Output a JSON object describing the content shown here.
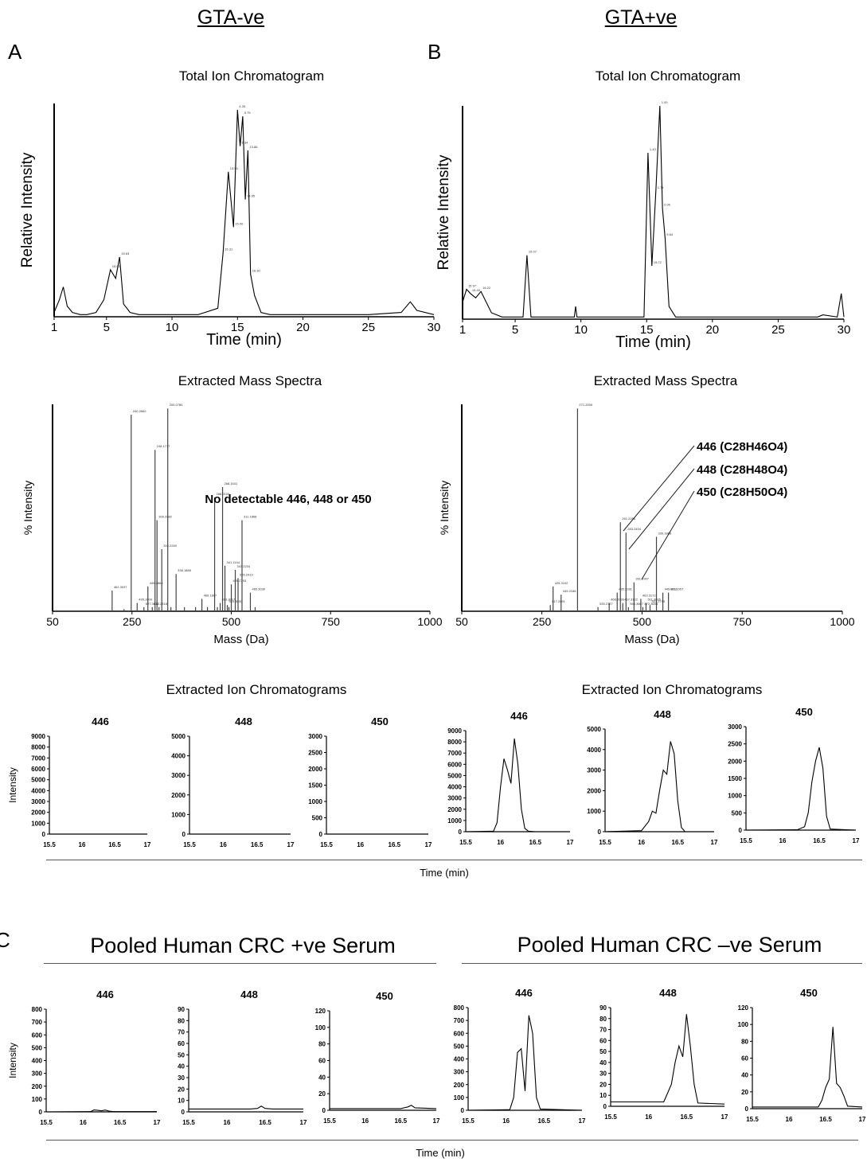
{
  "headers": {
    "left": "GTA-ve",
    "right": "GTA+ve"
  },
  "panel_letters": {
    "a": "A",
    "b": "B",
    "c": "C"
  },
  "panel_titles": {
    "tic": "Total Ion Chromatogram",
    "ms": "Extracted Mass Spectra",
    "eic": "Extracted Ion Chromatograms"
  },
  "section_c": {
    "left": "Pooled Human CRC +ve Serum",
    "right": "Pooled Human CRC –ve Serum"
  },
  "time_label": "Time (min)",
  "chart_data": [
    {
      "id": "tic_neg",
      "type": "line",
      "title": "Total Ion Chromatogram",
      "xlabel": "Time (min)",
      "ylabel": "Relative Intensity",
      "xlim": [
        1,
        30
      ],
      "ylim": [
        0,
        100
      ],
      "xticks": [
        1,
        5,
        10,
        15,
        20,
        25,
        30
      ],
      "x": [
        1,
        1.4,
        1.7,
        2.0,
        2.4,
        3.0,
        3.5,
        4.2,
        4.8,
        5.3,
        5.7,
        6.0,
        6.3,
        6.8,
        7.5,
        9,
        12,
        13.5,
        13.9,
        14.3,
        14.7,
        15.0,
        15.2,
        15.4,
        15.6,
        15.8,
        16.0,
        16.3,
        16.8,
        17.5,
        19,
        22,
        25,
        27.5,
        28.2,
        28.7,
        30
      ],
      "y": [
        2,
        8,
        14,
        5,
        2,
        1,
        1,
        2,
        8,
        22,
        18,
        28,
        6,
        2,
        1,
        1,
        1,
        4,
        30,
        68,
        42,
        97,
        80,
        94,
        55,
        78,
        20,
        10,
        2,
        1,
        1,
        1,
        1,
        2,
        7,
        3,
        1
      ],
      "peak_labels": [
        "4.26",
        "5.75",
        "6.34",
        "13.86",
        "13.90",
        "14.35",
        "15.00",
        "15.31",
        "15.63",
        "15.92",
        "16.30"
      ]
    },
    {
      "id": "tic_pos",
      "type": "line",
      "title": "Total Ion Chromatogram",
      "xlabel": "Time (min)",
      "ylabel": "Relative Intensity",
      "xlim": [
        1,
        30
      ],
      "ylim": [
        0,
        100
      ],
      "xticks": [
        1,
        5,
        10,
        15,
        20,
        25,
        30
      ],
      "x": [
        1,
        1.3,
        1.6,
        2.0,
        2.4,
        2.8,
        3.2,
        4,
        5.6,
        5.9,
        6.2,
        7,
        9.5,
        9.6,
        9.7,
        14.8,
        15.1,
        15.4,
        15.7,
        16.0,
        16.2,
        16.4,
        16.7,
        17.2,
        18,
        22,
        28,
        28.4,
        29.5,
        29.8,
        30
      ],
      "y": [
        8,
        14,
        12,
        10,
        13,
        8,
        3,
        1,
        1,
        30,
        1,
        1,
        1,
        6,
        1,
        1,
        78,
        25,
        60,
        100,
        52,
        38,
        6,
        1,
        1,
        1,
        1,
        2,
        1,
        12,
        1
      ],
      "peak_labels": [
        "1.00",
        "1.43",
        "1.74",
        "2.06",
        "5.64",
        "15.07",
        "15.72",
        "15.97",
        "16.22",
        "16.40"
      ]
    },
    {
      "id": "ms_neg",
      "type": "bar",
      "title": "Extracted Mass Spectra",
      "xlabel": "Mass (Da)",
      "ylabel": "% Intensity",
      "xlim": [
        50,
        1000
      ],
      "ylim": [
        0,
        100
      ],
      "xticks": [
        50,
        250,
        500,
        750,
        1000
      ],
      "annotation": "No detectable 446, 448 or 450",
      "x": [
        200,
        230,
        248,
        263,
        280,
        290,
        301,
        308,
        313,
        318,
        325,
        340,
        348,
        361,
        382,
        410,
        426,
        440,
        458,
        465,
        472,
        478,
        484,
        490,
        494,
        500,
        510,
        517,
        527,
        548,
        560
      ],
      "y": [
        10,
        1,
        95,
        4,
        2,
        12,
        2,
        78,
        44,
        2,
        30,
        98,
        2,
        18,
        2,
        2,
        6,
        2,
        55,
        2,
        4,
        60,
        22,
        3,
        2,
        13,
        20,
        16,
        44,
        9,
        2
      ],
      "peak_labels": [
        "200.0780",
        "240.2660",
        "248.1717",
        "268.1631",
        "288.2100",
        "309.2082",
        "311.1868",
        "310.2269",
        "341.1144",
        "343.2234",
        "338.1888",
        "365.2910",
        "426.2793",
        "449.2868",
        "462.3037",
        "465.3030",
        "469.1807",
        "495.1009",
        "499.3017",
        "510.3000",
        "527.3612",
        "532.2318"
      ]
    },
    {
      "id": "ms_pos",
      "type": "bar",
      "title": "Extracted Mass Spectra",
      "xlabel": "Mass (Da)",
      "ylabel": "% Intensity",
      "xlim": [
        50,
        1000
      ],
      "ylim": [
        0,
        100
      ],
      "xticks": [
        50,
        250,
        500,
        750,
        1000
      ],
      "annotations": [
        "446 (C28H46O4)",
        "448 (C28H48O4)",
        "450 (C28H50O4)"
      ],
      "x": [
        271,
        278,
        298,
        339,
        390,
        418,
        438,
        446,
        452,
        460,
        466,
        480,
        497,
        502,
        510,
        520,
        536,
        552,
        566
      ],
      "y": [
        3,
        12,
        8,
        98,
        2,
        4,
        9,
        43,
        4,
        38,
        2,
        14,
        6,
        2,
        4,
        3,
        36,
        9,
        9
      ],
      "peak_labels": [
        "271.2009",
        "261.2286",
        "283.2454",
        "339.1888",
        "391.2907",
        "425.3102",
        "435.3281",
        "445.3211",
        "461.1957",
        "449.2186",
        "463.3172",
        "468.2036",
        "467.3122",
        "511.3095",
        "517.2891",
        "527.2795",
        "535.2727",
        "546.3667",
        "572.3658",
        "581.3880"
      ]
    },
    {
      "id": "eic_neg_446",
      "type": "line",
      "title": "446",
      "ylabel": "Intensity",
      "xlim": [
        15.5,
        17
      ],
      "ylim": [
        0,
        9000
      ],
      "xticks": [
        15.5,
        16,
        16.5,
        17
      ],
      "yticks": [
        0,
        1000,
        2000,
        3000,
        4000,
        5000,
        6000,
        7000,
        8000,
        9000
      ],
      "x": [
        15.5,
        17
      ],
      "y": [
        0,
        0
      ]
    },
    {
      "id": "eic_neg_448",
      "type": "line",
      "title": "448",
      "xlim": [
        15.5,
        17
      ],
      "ylim": [
        0,
        5000
      ],
      "xticks": [
        15.5,
        16,
        16.5,
        17
      ],
      "yticks": [
        0,
        1000,
        2000,
        3000,
        4000,
        5000
      ],
      "x": [
        15.5,
        17
      ],
      "y": [
        0,
        0
      ]
    },
    {
      "id": "eic_neg_450",
      "type": "line",
      "title": "450",
      "xlim": [
        15.5,
        17
      ],
      "ylim": [
        0,
        3000
      ],
      "xticks": [
        15.5,
        16,
        16.5,
        17
      ],
      "yticks": [
        0,
        500,
        1000,
        1500,
        2000,
        2500,
        3000
      ],
      "x": [
        15.5,
        17
      ],
      "y": [
        0,
        0
      ]
    },
    {
      "id": "eic_pos_446",
      "type": "line",
      "title": "446",
      "xlim": [
        15.5,
        17
      ],
      "ylim": [
        0,
        9000
      ],
      "xticks": [
        15.5,
        16,
        16.5,
        17
      ],
      "yticks": [
        0,
        1000,
        2000,
        3000,
        4000,
        5000,
        6000,
        7000,
        8000,
        9000
      ],
      "x": [
        15.5,
        15.9,
        15.95,
        16.0,
        16.05,
        16.1,
        16.15,
        16.2,
        16.25,
        16.3,
        16.35,
        16.4,
        16.5,
        17
      ],
      "y": [
        0,
        50,
        800,
        4000,
        6500,
        5500,
        4300,
        8300,
        6000,
        2000,
        300,
        50,
        0,
        0
      ]
    },
    {
      "id": "eic_pos_448",
      "type": "line",
      "title": "448",
      "xlim": [
        15.5,
        17
      ],
      "ylim": [
        0,
        5000
      ],
      "xticks": [
        15.5,
        16,
        16.5,
        17
      ],
      "yticks": [
        0,
        1000,
        2000,
        3000,
        4000,
        5000
      ],
      "x": [
        15.5,
        16.0,
        16.1,
        16.15,
        16.2,
        16.25,
        16.3,
        16.35,
        16.4,
        16.45,
        16.5,
        16.55,
        16.6,
        17
      ],
      "y": [
        0,
        50,
        500,
        1000,
        900,
        2000,
        3000,
        2800,
        4400,
        3800,
        1500,
        200,
        0,
        0
      ]
    },
    {
      "id": "eic_pos_450",
      "type": "line",
      "title": "450",
      "xlim": [
        15.5,
        17
      ],
      "ylim": [
        0,
        3000
      ],
      "xticks": [
        15.5,
        16,
        16.5,
        17
      ],
      "yticks": [
        0,
        500,
        1000,
        1500,
        2000,
        2500,
        3000
      ],
      "x": [
        15.5,
        16.2,
        16.3,
        16.35,
        16.4,
        16.45,
        16.5,
        16.55,
        16.6,
        16.65,
        17
      ],
      "y": [
        0,
        10,
        100,
        500,
        1400,
        2000,
        2400,
        1800,
        400,
        30,
        0
      ]
    },
    {
      "id": "crc_pos_446",
      "type": "line",
      "title": "446",
      "ylabel": "Intensity",
      "xlim": [
        15.5,
        17
      ],
      "ylim": [
        0,
        800
      ],
      "xticks": [
        15.5,
        16,
        16.5,
        17
      ],
      "yticks": [
        0,
        100,
        200,
        300,
        400,
        500,
        600,
        700,
        800
      ],
      "x": [
        15.5,
        16.1,
        16.15,
        16.2,
        16.25,
        16.3,
        16.35,
        16.4,
        17
      ],
      "y": [
        0,
        2,
        15,
        12,
        8,
        14,
        6,
        3,
        2
      ]
    },
    {
      "id": "crc_pos_448",
      "type": "line",
      "title": "448",
      "xlim": [
        15.5,
        17
      ],
      "ylim": [
        0,
        90
      ],
      "xticks": [
        15.5,
        16,
        16.5,
        17
      ],
      "yticks": [
        0,
        10,
        20,
        30,
        40,
        50,
        60,
        70,
        80,
        90
      ],
      "x": [
        15.5,
        16.3,
        16.4,
        16.45,
        16.5,
        16.6,
        17
      ],
      "y": [
        2.5,
        2.5,
        3,
        5,
        3,
        2.5,
        2.5
      ]
    },
    {
      "id": "crc_pos_450",
      "type": "line",
      "title": "450",
      "xlim": [
        15.5,
        17
      ],
      "ylim": [
        0,
        120
      ],
      "xticks": [
        15.5,
        16,
        16.5,
        17
      ],
      "yticks": [
        0,
        20,
        40,
        60,
        80,
        100,
        120
      ],
      "x": [
        15.5,
        16.5,
        16.6,
        16.65,
        16.7,
        17
      ],
      "y": [
        2,
        2,
        4,
        6,
        3,
        2
      ]
    },
    {
      "id": "crc_neg_446",
      "type": "line",
      "title": "446",
      "xlim": [
        15.5,
        17
      ],
      "ylim": [
        0,
        800
      ],
      "xticks": [
        15.5,
        16,
        16.5,
        17
      ],
      "yticks": [
        0,
        100,
        200,
        300,
        400,
        500,
        600,
        700,
        800
      ],
      "x": [
        15.5,
        16.05,
        16.1,
        16.15,
        16.2,
        16.25,
        16.3,
        16.35,
        16.4,
        16.45,
        17
      ],
      "y": [
        0,
        5,
        100,
        450,
        480,
        150,
        740,
        600,
        100,
        10,
        0
      ]
    },
    {
      "id": "crc_neg_448",
      "type": "line",
      "title": "448",
      "xlim": [
        15.5,
        17
      ],
      "ylim": [
        0,
        90
      ],
      "xticks": [
        15.5,
        16,
        16.5,
        17
      ],
      "yticks": [
        0,
        10,
        20,
        30,
        40,
        50,
        60,
        70,
        80,
        90
      ],
      "x": [
        15.5,
        16.2,
        16.25,
        16.3,
        16.35,
        16.4,
        16.45,
        16.5,
        16.55,
        16.6,
        16.65,
        17
      ],
      "y": [
        4,
        4,
        12,
        20,
        40,
        55,
        45,
        84,
        55,
        20,
        3,
        2
      ]
    },
    {
      "id": "crc_neg_450",
      "type": "line",
      "title": "450",
      "xlim": [
        15.5,
        17
      ],
      "ylim": [
        0,
        120
      ],
      "xticks": [
        15.5,
        16,
        16.5,
        17
      ],
      "yticks": [
        0,
        20,
        40,
        60,
        80,
        100,
        120
      ],
      "x": [
        15.5,
        16.4,
        16.45,
        16.5,
        16.55,
        16.6,
        16.65,
        16.7,
        16.75,
        16.8,
        17
      ],
      "y": [
        2,
        2,
        10,
        25,
        35,
        97,
        30,
        25,
        15,
        3,
        2
      ]
    }
  ]
}
